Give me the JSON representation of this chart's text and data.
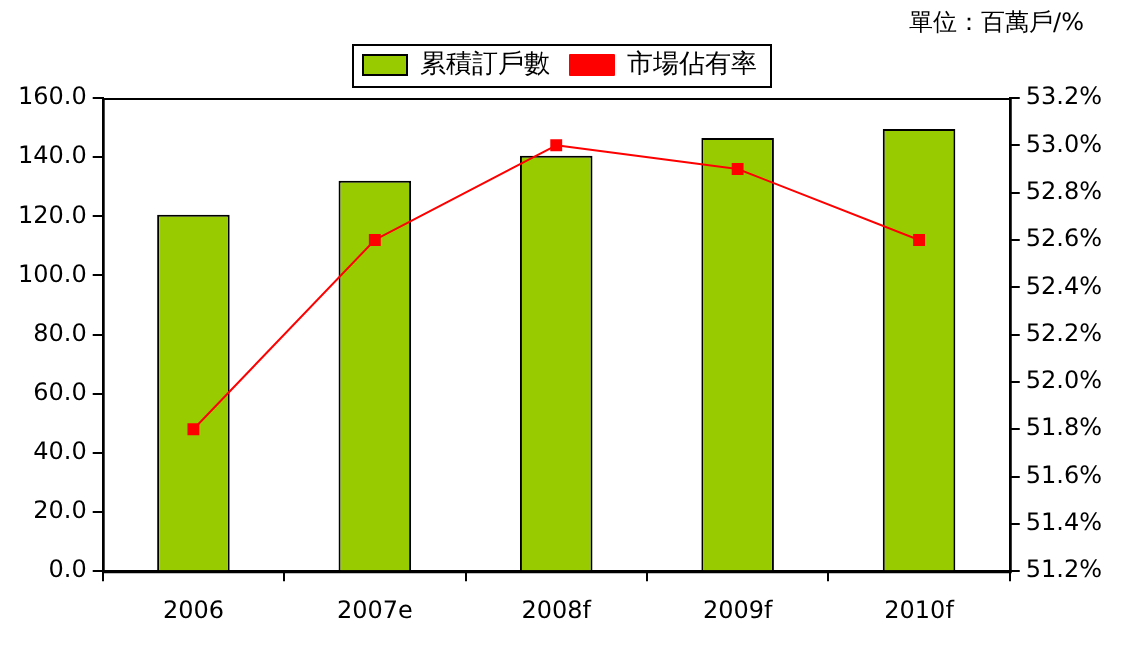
{
  "chart_data": {
    "type": "bar",
    "annotations": [
      "單位：百萬戶/%"
    ],
    "categories": [
      "2006",
      "2007e",
      "2008f",
      "2009f",
      "2010f"
    ],
    "series": [
      {
        "name": "累積訂戶數",
        "color": "#99cc00",
        "values": [
          120.5,
          132,
          140.5,
          146.5,
          149.5
        ]
      },
      {
        "name": "市場佔有率",
        "type": "line",
        "axis": "y2",
        "color": "#ff0000",
        "marker": "square",
        "values": [
          51.8,
          52.6,
          53.0,
          52.9,
          52.6
        ]
      }
    ],
    "ylim": [
      0,
      160
    ],
    "yticks": [
      {
        "value": 0,
        "label": "0.0"
      },
      {
        "value": 20,
        "label": "20.0"
      },
      {
        "value": 40,
        "label": "40.0"
      },
      {
        "value": 60,
        "label": "60.0"
      },
      {
        "value": 80,
        "label": "80.0"
      },
      {
        "value": 100,
        "label": "100.0"
      },
      {
        "value": 120,
        "label": "120.0"
      },
      {
        "value": 140,
        "label": "140.0"
      },
      {
        "value": 160,
        "label": "160.0"
      }
    ],
    "y2lim": [
      51.2,
      53.2
    ],
    "y2ticks": [
      {
        "value": 51.2,
        "label": "51.2%"
      },
      {
        "value": 51.4,
        "label": "51.4%"
      },
      {
        "value": 51.6,
        "label": "51.6%"
      },
      {
        "value": 51.8,
        "label": "51.8%"
      },
      {
        "value": 52.0,
        "label": "52.0%"
      },
      {
        "value": 52.2,
        "label": "52.2%"
      },
      {
        "value": 52.4,
        "label": "52.4%"
      },
      {
        "value": 52.6,
        "label": "52.6%"
      },
      {
        "value": 52.8,
        "label": "52.8%"
      },
      {
        "value": 53.0,
        "label": "53.0%"
      },
      {
        "value": 53.2,
        "label": "53.2%"
      }
    ],
    "grid": false,
    "legend": "top"
  }
}
